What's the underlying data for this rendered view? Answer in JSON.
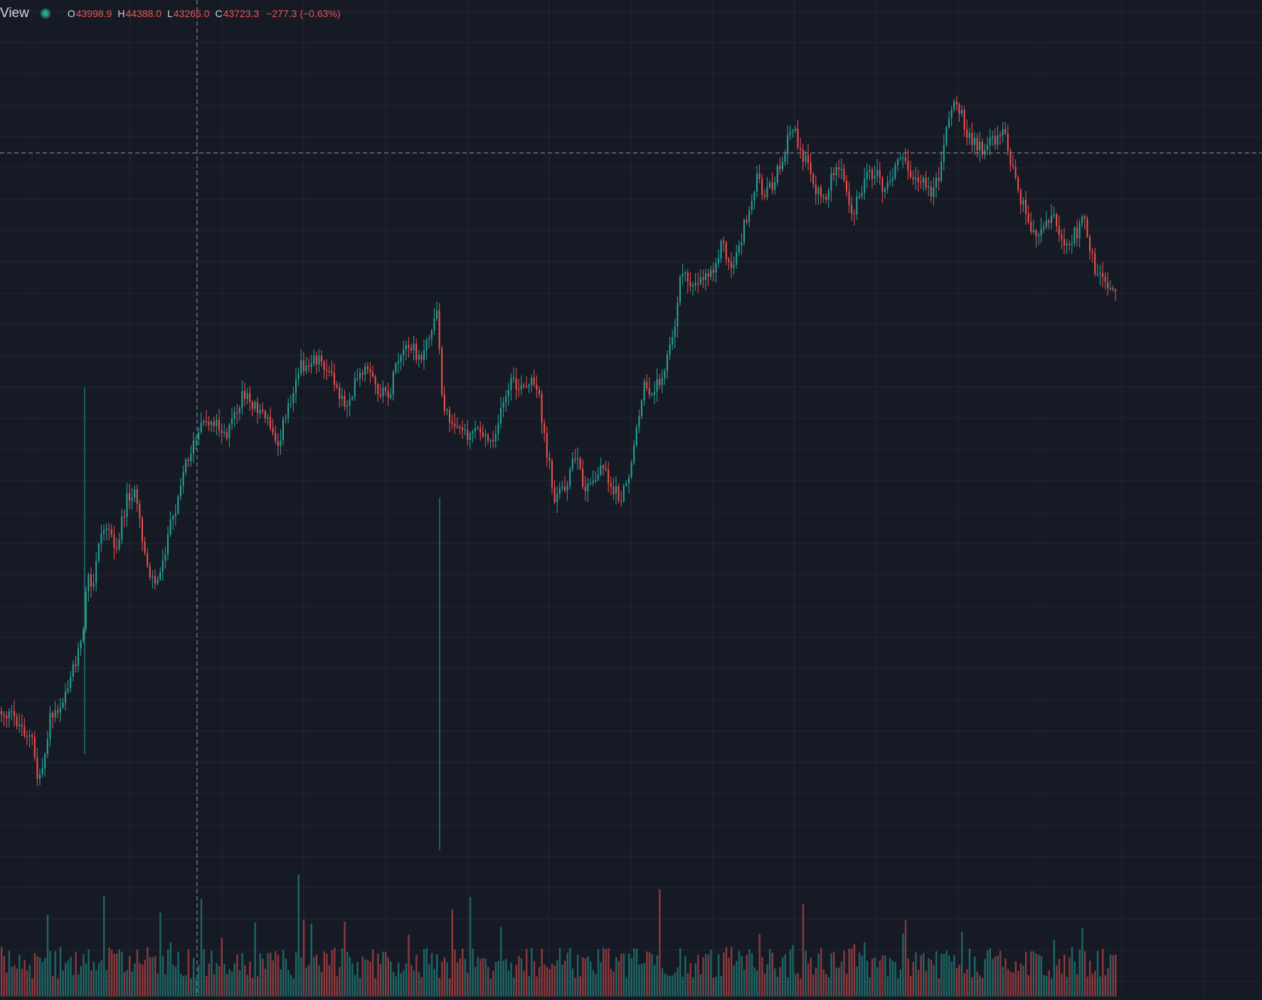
{
  "legend": {
    "symbol_label": "View",
    "open_key": "O",
    "open": "43998.9",
    "high_key": "H",
    "high": "44388.0",
    "low_key": "L",
    "low": "43265.0",
    "close_key": "C",
    "close": "43723.3",
    "change": "−277.3 (−0.63%)"
  },
  "colors": {
    "background": "#161a25",
    "grid": "#232734",
    "up": "#26a69a",
    "down": "#ef5350",
    "crosshair": "#9598a1",
    "text": "#d1d4dc"
  },
  "chart_data": {
    "type": "candlestick",
    "crosshair": true,
    "volume_pane": true,
    "keyframes": [
      [
        0,
        1000
      ],
      [
        20,
        1010
      ],
      [
        45,
        1040
      ],
      [
        52,
        1095
      ],
      [
        60,
        1080
      ],
      [
        70,
        1010
      ],
      [
        85,
        990
      ],
      [
        100,
        945
      ],
      [
        112,
        910
      ],
      [
        118,
        890
      ],
      [
        122,
        800
      ],
      [
        130,
        840
      ],
      [
        138,
        760
      ],
      [
        150,
        740
      ],
      [
        165,
        770
      ],
      [
        178,
        700
      ],
      [
        188,
        690
      ],
      [
        200,
        760
      ],
      [
        212,
        810
      ],
      [
        222,
        820
      ],
      [
        232,
        770
      ],
      [
        245,
        720
      ],
      [
        255,
        670
      ],
      [
        265,
        640
      ],
      [
        275,
        620
      ],
      [
        285,
        600
      ],
      [
        300,
        590
      ],
      [
        320,
        610
      ],
      [
        340,
        560
      ],
      [
        360,
        570
      ],
      [
        375,
        590
      ],
      [
        392,
        620
      ],
      [
        405,
        570
      ],
      [
        420,
        520
      ],
      [
        440,
        500
      ],
      [
        455,
        510
      ],
      [
        470,
        540
      ],
      [
        485,
        570
      ],
      [
        500,
        540
      ],
      [
        515,
        520
      ],
      [
        530,
        550
      ],
      [
        545,
        560
      ],
      [
        560,
        510
      ],
      [
        575,
        490
      ],
      [
        595,
        500
      ],
      [
        610,
        450
      ],
      [
        616,
        445
      ],
      [
        622,
        580
      ],
      [
        640,
        590
      ],
      [
        655,
        610
      ],
      [
        670,
        600
      ],
      [
        690,
        620
      ],
      [
        705,
        580
      ],
      [
        718,
        540
      ],
      [
        735,
        550
      ],
      [
        748,
        540
      ],
      [
        758,
        560
      ],
      [
        768,
        630
      ],
      [
        780,
        700
      ],
      [
        795,
        680
      ],
      [
        810,
        640
      ],
      [
        820,
        690
      ],
      [
        835,
        680
      ],
      [
        848,
        650
      ],
      [
        860,
        690
      ],
      [
        875,
        700
      ],
      [
        885,
        660
      ],
      [
        895,
        600
      ],
      [
        905,
        545
      ],
      [
        920,
        550
      ],
      [
        935,
        510
      ],
      [
        950,
        460
      ],
      [
        955,
        380
      ],
      [
        968,
        400
      ],
      [
        985,
        390
      ],
      [
        1000,
        380
      ],
      [
        1015,
        340
      ],
      [
        1028,
        380
      ],
      [
        1040,
        340
      ],
      [
        1055,
        290
      ],
      [
        1062,
        250
      ],
      [
        1075,
        270
      ],
      [
        1090,
        250
      ],
      [
        1103,
        210
      ],
      [
        1115,
        180
      ],
      [
        1130,
        220
      ],
      [
        1145,
        260
      ],
      [
        1160,
        280
      ],
      [
        1170,
        240
      ],
      [
        1185,
        250
      ],
      [
        1198,
        300
      ],
      [
        1212,
        260
      ],
      [
        1228,
        240
      ],
      [
        1245,
        270
      ],
      [
        1265,
        220
      ],
      [
        1280,
        240
      ],
      [
        1298,
        260
      ],
      [
        1310,
        270
      ],
      [
        1322,
        240
      ],
      [
        1330,
        180
      ],
      [
        1342,
        140
      ],
      [
        1355,
        170
      ],
      [
        1365,
        200
      ],
      [
        1380,
        210
      ],
      [
        1395,
        200
      ],
      [
        1410,
        180
      ],
      [
        1420,
        230
      ],
      [
        1435,
        280
      ],
      [
        1450,
        330
      ],
      [
        1465,
        320
      ],
      [
        1480,
        300
      ],
      [
        1495,
        340
      ],
      [
        1510,
        330
      ],
      [
        1525,
        310
      ],
      [
        1540,
        380
      ],
      [
        1555,
        395
      ],
      [
        1568,
        400
      ]
    ]
  }
}
